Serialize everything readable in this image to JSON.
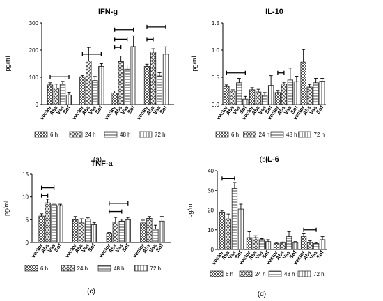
{
  "legend": [
    "6 h",
    "24 h",
    "48 h",
    "72 h"
  ],
  "ylabel_shared": "pg/ml",
  "chart_data": [
    {
      "type": "bar",
      "title": "IFN-g",
      "ylabel": "pg/ml",
      "panel_label": "(a)",
      "ylim": [
        0,
        300
      ],
      "yticks": [
        "0",
        "100",
        "200",
        "300"
      ],
      "categories": [
        "vector",
        "Abs",
        "Vas",
        "Sof"
      ],
      "series": [
        {
          "name": "6 h",
          "values": [
            72,
            60,
            75,
            35
          ],
          "errors": [
            8,
            15,
            10,
            10
          ]
        },
        {
          "name": "24 h",
          "values": [
            102,
            160,
            88,
            140
          ],
          "errors": [
            5,
            50,
            15,
            10
          ]
        },
        {
          "name": "48 h",
          "values": [
            42,
            158,
            130,
            213
          ],
          "errors": [
            8,
            20,
            15,
            40
          ]
        },
        {
          "name": "72 h",
          "values": [
            140,
            193,
            105,
            185
          ],
          "errors": [
            8,
            12,
            12,
            27
          ]
        }
      ],
      "brackets": [
        {
          "group": 0,
          "from": 0,
          "to": 3,
          "y": 102
        },
        {
          "group": 1,
          "from": 0,
          "to": 3,
          "y": 185
        },
        {
          "group": 2,
          "from": 0,
          "to": 1,
          "y": 210
        },
        {
          "group": 2,
          "from": 0,
          "to": 2,
          "y": 240
        },
        {
          "group": 2,
          "from": 0,
          "to": 3,
          "y": 275
        },
        {
          "group": 3,
          "from": 0,
          "to": 1,
          "y": 240
        },
        {
          "group": 3,
          "from": 0,
          "to": 3,
          "y": 285
        }
      ]
    },
    {
      "type": "bar",
      "title": "IL-10",
      "ylabel": "pg/ml",
      "panel_label": "(b)",
      "ylim": [
        0,
        1.5
      ],
      "yticks": [
        "0.0",
        "0.5",
        "1.0",
        "1.5"
      ],
      "categories": [
        "vector",
        "Abs",
        "Vas",
        "Sof"
      ],
      "series": [
        {
          "name": "6 h",
          "values": [
            0.33,
            0.25,
            0.4,
            0.1
          ],
          "errors": [
            0.03,
            0.02,
            0.08,
            0.05
          ]
        },
        {
          "name": "24 h",
          "values": [
            0.27,
            0.23,
            0.17,
            0.35
          ],
          "errors": [
            0.04,
            0.05,
            0.05,
            0.18
          ]
        },
        {
          "name": "48 h",
          "values": [
            0.22,
            0.38,
            0.45,
            0.42
          ],
          "errors": [
            0.04,
            0.03,
            0.22,
            0.1
          ]
        },
        {
          "name": "72 h",
          "values": [
            0.78,
            0.32,
            0.4,
            0.43
          ],
          "errors": [
            0.23,
            0.05,
            0.08,
            0.05
          ]
        }
      ],
      "brackets": [
        {
          "group": 0,
          "from": 0,
          "to": 3,
          "y": 0.58
        },
        {
          "group": 2,
          "from": 0,
          "to": 1,
          "y": 0.58
        }
      ]
    },
    {
      "type": "bar",
      "title": "TNF-a",
      "ylabel": "pg/ml",
      "panel_label": "(c)",
      "ylim": [
        0,
        15
      ],
      "yticks": [
        "0",
        "5",
        "10",
        "15"
      ],
      "categories": [
        "vector",
        "Abs",
        "Vas",
        "Sof"
      ],
      "series": [
        {
          "name": "6 h",
          "values": [
            5.8,
            8.7,
            8.3,
            8.1
          ],
          "errors": [
            0.5,
            0.8,
            0.3,
            0.3
          ]
        },
        {
          "name": "24 h",
          "values": [
            5.0,
            4.3,
            5.1,
            3.9
          ],
          "errors": [
            0.7,
            0.9,
            0.3,
            0.5
          ]
        },
        {
          "name": "48 h",
          "values": [
            2.0,
            4.5,
            4.7,
            5.0
          ],
          "errors": [
            0.2,
            1.0,
            0.4,
            0.5
          ]
        },
        {
          "name": "72 h",
          "values": [
            4.3,
            5.3,
            3.0,
            4.7
          ],
          "errors": [
            0.6,
            0.4,
            0.8,
            1.0
          ]
        }
      ],
      "brackets": [
        {
          "group": 0,
          "from": 0,
          "to": 1,
          "y": 10.3
        },
        {
          "group": 0,
          "from": 0,
          "to": 2,
          "y": 12.0
        },
        {
          "group": 2,
          "from": 0,
          "to": 2,
          "y": 6.8
        },
        {
          "group": 2,
          "from": 0,
          "to": 3,
          "y": 8.6
        }
      ]
    },
    {
      "type": "bar",
      "title": "IL-6",
      "ylabel": "pg/ml",
      "panel_label": "(d)",
      "ylim": [
        0,
        40
      ],
      "yticks": [
        "0",
        "10",
        "20",
        "30",
        "40"
      ],
      "categories": [
        "vector",
        "Abs",
        "Vas",
        "Sof"
      ],
      "series": [
        {
          "name": "6 h",
          "values": [
            19,
            15.5,
            31,
            20.5
          ],
          "errors": [
            0.8,
            2.5,
            3.0,
            2.5
          ]
        },
        {
          "name": "24 h",
          "values": [
            6.0,
            6.0,
            5.0,
            4.0
          ],
          "errors": [
            3.0,
            1.0,
            0.5,
            1.0
          ]
        },
        {
          "name": "48 h",
          "values": [
            3.0,
            3.3,
            6.5,
            3.5
          ],
          "errors": [
            0.5,
            0.5,
            2.5,
            0.5
          ]
        },
        {
          "name": "72 h",
          "values": [
            6.5,
            3.5,
            3.0,
            5.0
          ],
          "errors": [
            1.5,
            1.0,
            0.5,
            1.5
          ]
        }
      ],
      "brackets": [
        {
          "group": 0,
          "from": 0,
          "to": 2,
          "y": 36
        },
        {
          "group": 3,
          "from": 0,
          "to": 2,
          "y": 10
        }
      ]
    }
  ]
}
